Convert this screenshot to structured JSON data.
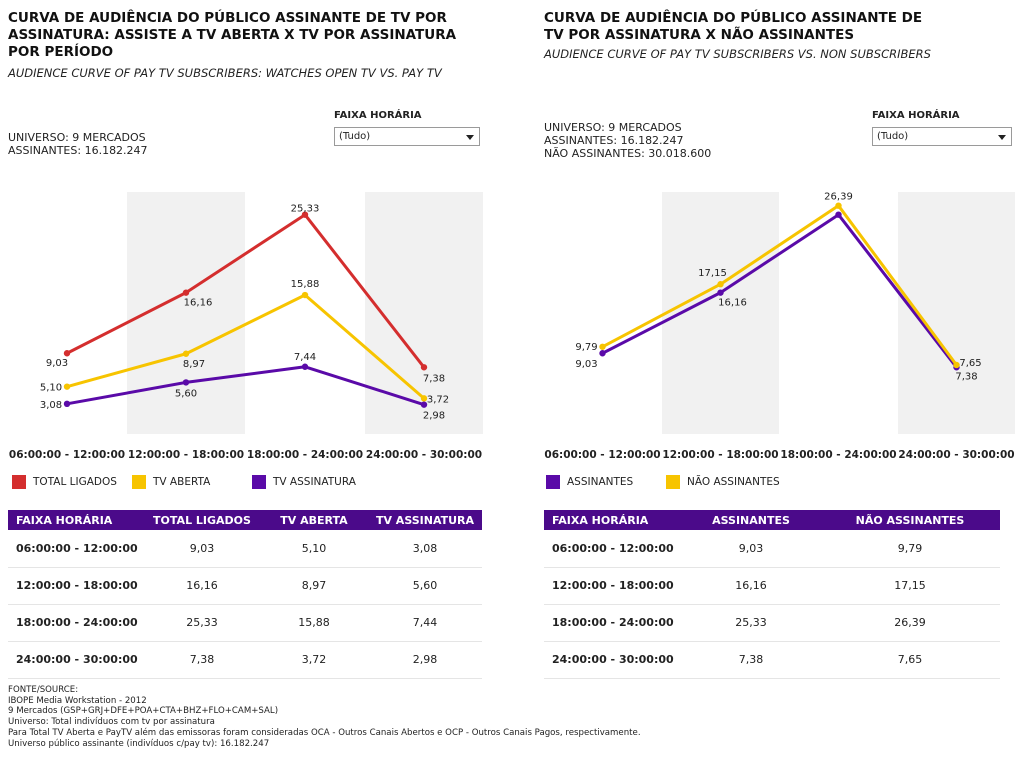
{
  "left_panel": {
    "title": "CURVA DE AUDIÊNCIA DO PÚBLICO ASSINANTE DE TV POR ASSINATURA: ASSISTE A TV ABERTA X TV POR ASSINATURA POR PERÍODO",
    "subtitle": "AUDIENCE CURVE OF PAY TV SUBSCRIBERS: WATCHES OPEN TV VS. PAY TV",
    "universe_lines": [
      "UNIVERSO: 9 MERCADOS",
      "ASSINANTES: 16.182.247"
    ],
    "filter_label": "FAIXA HORÁRIA",
    "filter_value": "(Tudo)",
    "table_headers": [
      "FAIXA HORÁRIA",
      "TOTAL LIGADOS",
      "TV ABERTA",
      "TV ASSINATURA"
    ],
    "table_rows": [
      [
        "06:00:00 - 12:00:00",
        "9,03",
        "5,10",
        "3,08"
      ],
      [
        "12:00:00 - 18:00:00",
        "16,16",
        "8,97",
        "5,60"
      ],
      [
        "18:00:00 - 24:00:00",
        "25,33",
        "15,88",
        "7,44"
      ],
      [
        "24:00:00 - 30:00:00",
        "7,38",
        "3,72",
        "2,98"
      ]
    ]
  },
  "right_panel": {
    "title": "CURVA DE AUDIÊNCIA DO PÚBLICO ASSINANTE DE TV POR ASSINATURA X NÃO ASSINANTES",
    "subtitle": "AUDIENCE CURVE OF PAY TV SUBSCRIBERS VS. NON SUBSCRIBERS",
    "universe_lines": [
      "UNIVERSO: 9 MERCADOS",
      "ASSINANTES: 16.182.247",
      "NÃO ASSINANTES: 30.018.600"
    ],
    "filter_label": "FAIXA HORÁRIA",
    "filter_value": "(Tudo)",
    "table_headers": [
      "FAIXA HORÁRIA",
      "ASSINANTES",
      "NÃO ASSINANTES"
    ],
    "table_rows": [
      [
        "06:00:00 - 12:00:00",
        "9,03",
        "9,79"
      ],
      [
        "12:00:00 - 18:00:00",
        "16,16",
        "17,15"
      ],
      [
        "18:00:00 - 24:00:00",
        "25,33",
        "26,39"
      ],
      [
        "24:00:00 - 30:00:00",
        "7,38",
        "7,65"
      ]
    ]
  },
  "footer_lines": [
    "FONTE/SOURCE:",
    "IBOPE Media Workstation - 2012",
    "9 Mercados  (GSP+GRJ+DFE+POA+CTA+BHZ+FLO+CAM+SAL)",
    "Universo: Total indivíduos com tv por assinatura",
    "Para Total TV Aberta e PayTV além das emissoras foram consideradas OCA - Outros Canais Abertos e OCP - Outros Canais Pagos, respectivamente.",
    "Universo público assinante (indivíduos c/pay tv): 16.182.247"
  ],
  "chart_data": [
    {
      "type": "line",
      "categories": [
        "06:00:00 - 12:00:00",
        "12:00:00 - 18:00:00",
        "18:00:00 - 24:00:00",
        "24:00:00 - 30:00:00"
      ],
      "series": [
        {
          "name": "TOTAL LIGADOS",
          "values": [
            9.03,
            16.16,
            25.33,
            7.38
          ],
          "labels": [
            "9,03",
            "16,16",
            "25,33",
            "7,38"
          ],
          "color": "#d42e2e"
        },
        {
          "name": "TV ABERTA",
          "values": [
            5.1,
            8.97,
            15.88,
            3.72
          ],
          "labels": [
            "5,10",
            "8,97",
            "15,88",
            "3,72"
          ],
          "color": "#f7c400"
        },
        {
          "name": "TV ASSINATURA",
          "values": [
            3.08,
            5.6,
            7.44,
            2.98
          ],
          "labels": [
            "3,08",
            "5,60",
            "7,44",
            "2,98"
          ],
          "color": "#5a0aa8"
        }
      ],
      "legend_position": "bottom",
      "alternating_column_shading": true
    },
    {
      "type": "line",
      "categories": [
        "06:00:00 - 12:00:00",
        "12:00:00 - 18:00:00",
        "18:00:00 - 24:00:00",
        "24:00:00 - 30:00:00"
      ],
      "series": [
        {
          "name": "ASSINANTES",
          "values": [
            9.03,
            16.16,
            25.33,
            7.38
          ],
          "labels": [
            "9,03",
            "16,16",
            "",
            "7,38"
          ],
          "color": "#5a0aa8"
        },
        {
          "name": "NÃO ASSINANTES",
          "values": [
            9.79,
            17.15,
            26.39,
            7.65
          ],
          "labels": [
            "9,79",
            "17,15",
            "26,39",
            "7,65"
          ],
          "color": "#f7c400"
        }
      ],
      "legend_position": "bottom",
      "alternating_column_shading": true
    }
  ]
}
